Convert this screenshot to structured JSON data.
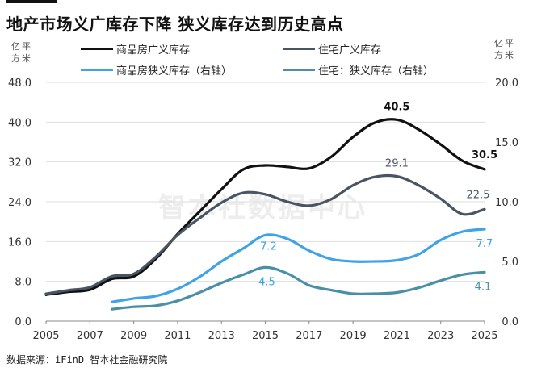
{
  "header": {
    "title": "地产市场义广库存下降 狭义库存达到历史高点"
  },
  "watermark": "智本社数据中心",
  "source": "数据来源：iFinD 智本社金融研究院",
  "chart_data": {
    "type": "line",
    "left_unit": "亿平方米",
    "right_unit": "亿平方米",
    "x": [
      2005,
      2006,
      2007,
      2008,
      2009,
      2010,
      2011,
      2012,
      2013,
      2014,
      2015,
      2016,
      2017,
      2018,
      2019,
      2020,
      2021,
      2022,
      2023,
      2024,
      2025
    ],
    "x_ticks": [
      "2005",
      "2007",
      "2009",
      "2011",
      "2013",
      "2015",
      "2017",
      "2019",
      "2021",
      "2023",
      "2025"
    ],
    "x_range": [
      2005,
      2025
    ],
    "y_left": {
      "range": [
        0,
        48
      ],
      "ticks": [
        "0.0",
        "8.0",
        "16.0",
        "24.0",
        "32.0",
        "40.0",
        "48.0"
      ]
    },
    "y_right": {
      "range": [
        0,
        20
      ],
      "ticks": [
        "0.0",
        "5.0",
        "10.0",
        "15.0",
        "20.0"
      ]
    },
    "grid": true,
    "legend_position": "top",
    "series": [
      {
        "name": "商品房广义库存",
        "axis": "left",
        "color": "#111111",
        "x": [
          2005,
          2006,
          2007,
          2008,
          2009,
          2010,
          2011,
          2012,
          2013,
          2014,
          2015,
          2016,
          2017,
          2018,
          2019,
          2020,
          2021,
          2022,
          2023,
          2024,
          2025
        ],
        "values": [
          5.3,
          5.9,
          6.3,
          8.5,
          9.0,
          12.5,
          17.5,
          22.0,
          26.5,
          30.5,
          31.3,
          31.0,
          30.7,
          33.0,
          37.0,
          39.9,
          40.5,
          38.5,
          35.5,
          32.2,
          30.5
        ]
      },
      {
        "name": "住宅广义库存",
        "axis": "left",
        "color": "#4a5564",
        "x": [
          2005,
          2006,
          2007,
          2008,
          2009,
          2010,
          2011,
          2012,
          2013,
          2014,
          2015,
          2016,
          2017,
          2018,
          2019,
          2020,
          2021,
          2022,
          2023,
          2024,
          2025
        ],
        "values": [
          5.5,
          6.2,
          6.8,
          9.0,
          9.5,
          12.9,
          17.3,
          20.7,
          23.8,
          25.8,
          25.5,
          24.0,
          23.2,
          24.5,
          27.3,
          29.0,
          29.1,
          27.3,
          24.6,
          21.5,
          22.5
        ]
      },
      {
        "name": "商品房狭义库存（右轴）",
        "axis": "right",
        "color": "#3fa3e8",
        "x": [
          2008,
          2009,
          2010,
          2011,
          2012,
          2013,
          2014,
          2015,
          2016,
          2017,
          2018,
          2019,
          2020,
          2021,
          2022,
          2023,
          2024,
          2025
        ],
        "values": [
          1.6,
          1.9,
          2.1,
          2.7,
          3.7,
          5.0,
          6.1,
          7.2,
          6.9,
          5.9,
          5.2,
          5.0,
          5.0,
          5.1,
          5.6,
          6.8,
          7.5,
          7.7
        ]
      },
      {
        "name": "住宅：狭义库存（右轴）",
        "axis": "right",
        "color": "#4a8fa8",
        "x": [
          2008,
          2009,
          2010,
          2011,
          2012,
          2013,
          2014,
          2015,
          2016,
          2017,
          2018,
          2019,
          2020,
          2021,
          2022,
          2023,
          2024,
          2025
        ],
        "values": [
          1.0,
          1.2,
          1.3,
          1.7,
          2.4,
          3.2,
          3.9,
          4.5,
          4.0,
          3.0,
          2.6,
          2.3,
          2.3,
          2.4,
          2.8,
          3.4,
          3.9,
          4.1
        ]
      }
    ],
    "annotations": [
      {
        "text": "40.5",
        "series": 0,
        "x": 2021,
        "color": "#111111"
      },
      {
        "text": "30.5",
        "series": 0,
        "x": 2025,
        "color": "#111111"
      },
      {
        "text": "29.1",
        "series": 1,
        "x": 2021,
        "color": "#4a5564"
      },
      {
        "text": "22.5",
        "series": 1,
        "x": 2025,
        "color": "#4a5564"
      },
      {
        "text": "7.2",
        "series": 2,
        "x": 2015,
        "color": "#3fa3e8"
      },
      {
        "text": "7.7",
        "series": 2,
        "x": 2025,
        "color": "#3fa3e8"
      },
      {
        "text": "4.5",
        "series": 3,
        "x": 2015,
        "color": "#3fa3e8"
      },
      {
        "text": "4.1",
        "series": 3,
        "x": 2025,
        "color": "#4a8fa8"
      }
    ]
  }
}
